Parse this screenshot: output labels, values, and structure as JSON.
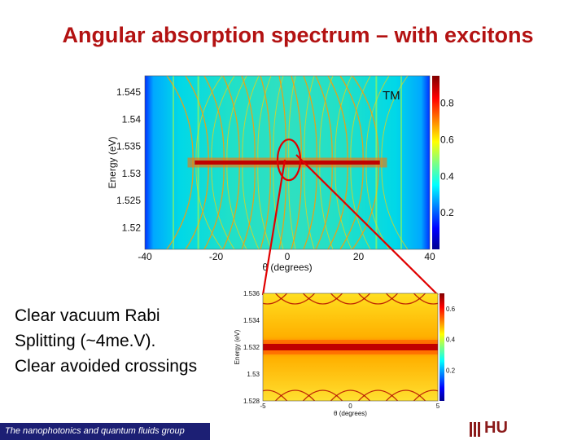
{
  "slide": {
    "title": "Angular absorption spectrum – with excitons",
    "caption_lines": [
      "Clear vacuum Rabi",
      "Splitting (~4me.V).",
      "Clear avoided crossings"
    ],
    "footer": "The nanophotonics and quantum fluids group",
    "logo_text": "HU"
  },
  "chart_data": [
    {
      "type": "heatmap",
      "title": "",
      "annotation": "TM",
      "xlabel": "θ (degrees)",
      "ylabel": "Energy (eV)",
      "xlim": [
        -40,
        40
      ],
      "ylim": [
        1.516,
        1.548
      ],
      "xticks": [
        -40,
        -20,
        0,
        20,
        40
      ],
      "yticks": [
        1.52,
        1.525,
        1.53,
        1.535,
        1.54,
        1.545
      ],
      "colorbar_ticks": [
        0.2,
        0.4,
        0.6,
        0.8
      ],
      "colorbar_range": [
        0,
        0.95
      ],
      "exciton_energy": 1.532,
      "colormap": "jet",
      "highlight_circle": {
        "center_x": 0,
        "center_y": 1.5325
      }
    },
    {
      "type": "heatmap",
      "title": "",
      "xlabel": "θ (degrees)",
      "ylabel": "Energy (eV)",
      "xlim": [
        -5,
        5
      ],
      "ylim": [
        1.528,
        1.536
      ],
      "xticks": [
        -5,
        0,
        5
      ],
      "yticks": [
        1.528,
        1.53,
        1.532,
        1.534,
        1.536
      ],
      "colorbar_ticks": [
        0.2,
        0.4,
        0.6
      ],
      "colorbar_range": [
        0,
        0.7
      ],
      "exciton_energy": 1.532,
      "colormap": "jet"
    }
  ]
}
